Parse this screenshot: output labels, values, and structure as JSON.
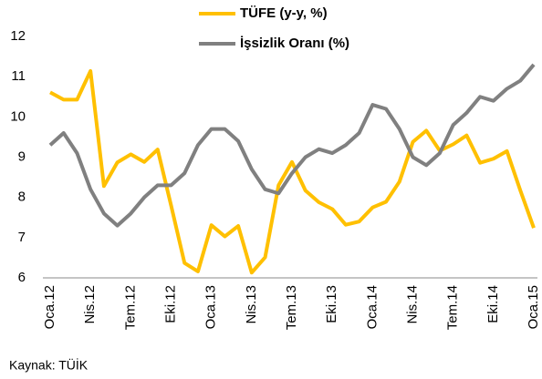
{
  "chart_data": {
    "type": "line",
    "categories": [
      "Oca.12",
      null,
      null,
      "Nis.12",
      null,
      null,
      "Tem.12",
      null,
      null,
      "Eki.12",
      null,
      null,
      "Oca.13",
      null,
      null,
      "Nis.13",
      null,
      null,
      "Tem.13",
      null,
      null,
      "Eki.13",
      null,
      null,
      "Oca.14",
      null,
      null,
      "Nis.14",
      null,
      null,
      "Tem.14",
      null,
      null,
      "Eki.14",
      null,
      null,
      "Oca.15"
    ],
    "series": [
      {
        "name": "TÜFE (y-y, %)",
        "color": "#FFC000",
        "values": [
          10.61,
          10.43,
          10.43,
          11.14,
          8.28,
          8.87,
          9.07,
          8.88,
          9.19,
          7.8,
          6.37,
          6.16,
          7.31,
          7.03,
          7.29,
          6.13,
          6.51,
          8.3,
          8.88,
          8.17,
          7.88,
          7.71,
          7.32,
          7.4,
          7.75,
          7.89,
          8.39,
          9.38,
          9.66,
          9.16,
          9.32,
          9.54,
          8.86,
          8.96,
          9.15,
          8.17,
          7.24
        ]
      },
      {
        "name": "İşsizlik Oranı (%)",
        "color": "#808080",
        "values": [
          9.3,
          9.6,
          9.1,
          8.2,
          7.6,
          7.3,
          7.6,
          8.0,
          8.3,
          8.3,
          8.6,
          9.3,
          9.7,
          9.7,
          9.4,
          8.7,
          8.2,
          8.1,
          8.6,
          9.0,
          9.2,
          9.1,
          9.3,
          9.6,
          10.3,
          10.2,
          9.7,
          9.0,
          8.8,
          9.1,
          9.8,
          10.1,
          10.5,
          10.4,
          10.7,
          10.9,
          11.3
        ]
      }
    ],
    "ylim": [
      6,
      12
    ],
    "yticks": [
      6,
      7,
      8,
      9,
      10,
      11,
      12
    ],
    "grid": false,
    "source": "Kaynak: TÜİK"
  }
}
